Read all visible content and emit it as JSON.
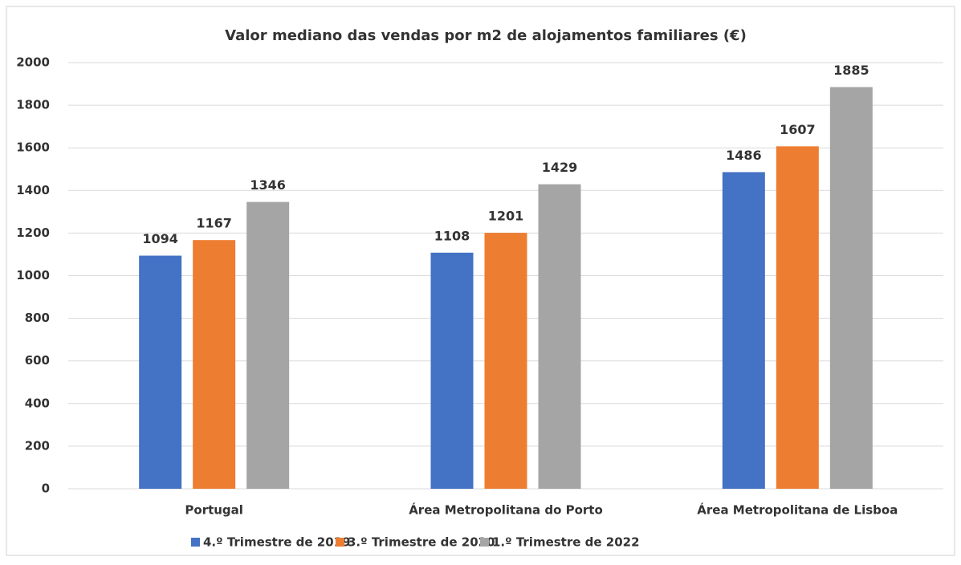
{
  "chart_data": {
    "type": "bar",
    "title": "Valor mediano das vendas por m2 de alojamentos familiares (€)",
    "categories": [
      "Portugal",
      "Área Metropolitana do Porto",
      "Área Metropolitana de Lisboa"
    ],
    "series": [
      {
        "name": "4.º Trimestre de 2019",
        "color": "#4472c4",
        "values": [
          1094,
          1108,
          1486
        ]
      },
      {
        "name": "3.º Trimestre de 2020",
        "color": "#ed7d31",
        "values": [
          1167,
          1201,
          1607
        ]
      },
      {
        "name": "1.º Trimestre de 2022",
        "color": "#a5a5a5",
        "values": [
          1346,
          1429,
          1885
        ]
      }
    ],
    "ylim": [
      0,
      2000
    ],
    "yticks": [
      0,
      200,
      400,
      600,
      800,
      1000,
      1200,
      1400,
      1600,
      1800,
      2000
    ],
    "grid": true,
    "legend": "bottom"
  }
}
